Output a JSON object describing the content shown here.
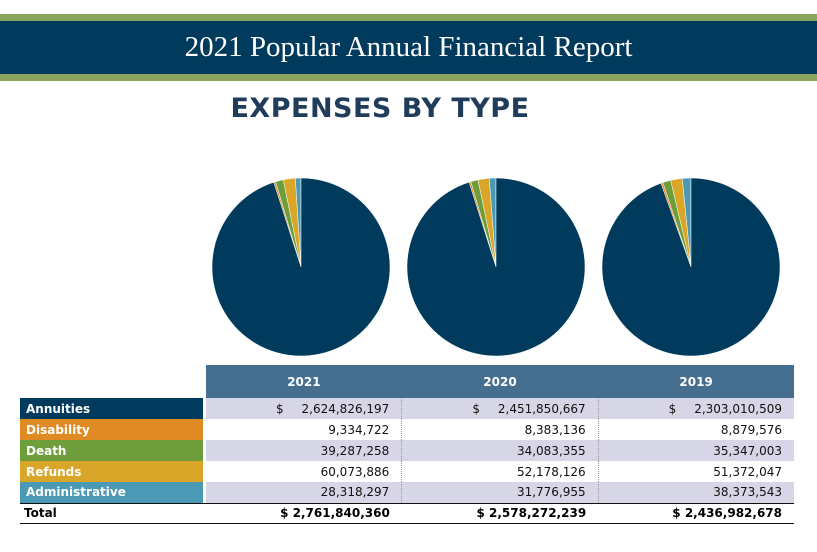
{
  "header": {
    "title": "2021 Popular Annual Financial Report"
  },
  "section_title": "EXPENSES BY TYPE",
  "colors": {
    "Annuities": "#003a5c",
    "Disability": "#e08a24",
    "Death": "#6e9e3c",
    "Refunds": "#d9a62a",
    "Administrative": "#4b9ab5"
  },
  "chart_data": {
    "type": "pie",
    "title": "EXPENSES BY TYPE",
    "categories": [
      "Annuities",
      "Disability",
      "Death",
      "Refunds",
      "Administrative"
    ],
    "series": [
      {
        "name": "2021",
        "values": [
          2624826197,
          9334722,
          39287258,
          60073886,
          28318297
        ]
      },
      {
        "name": "2020",
        "values": [
          2451850667,
          8383136,
          34083355,
          52178126,
          31776955
        ]
      },
      {
        "name": "2019",
        "values": [
          2303010509,
          8879576,
          35347003,
          51372047,
          38373543
        ]
      }
    ]
  },
  "table": {
    "headers": [
      "2021",
      "2020",
      "2019"
    ],
    "rows": [
      {
        "label": "Annuities",
        "values": [
          "2,624,826,197",
          "2,451,850,667",
          "2,303,010,509"
        ],
        "currency": "$"
      },
      {
        "label": "Disability",
        "values": [
          "9,334,722",
          "8,383,136",
          "8,879,576"
        ]
      },
      {
        "label": "Death",
        "values": [
          "39,287,258",
          "34,083,355",
          "35,347,003"
        ]
      },
      {
        "label": "Refunds",
        "values": [
          "60,073,886",
          "52,178,126",
          "51,372,047"
        ]
      },
      {
        "label": "Administrative",
        "values": [
          "28,318,297",
          "31,776,955",
          "38,373,543"
        ]
      }
    ],
    "total": {
      "label": "Total",
      "values": [
        "$ 2,761,840,360",
        "$ 2,578,272,239",
        "$ 2,436,982,678"
      ]
    }
  }
}
